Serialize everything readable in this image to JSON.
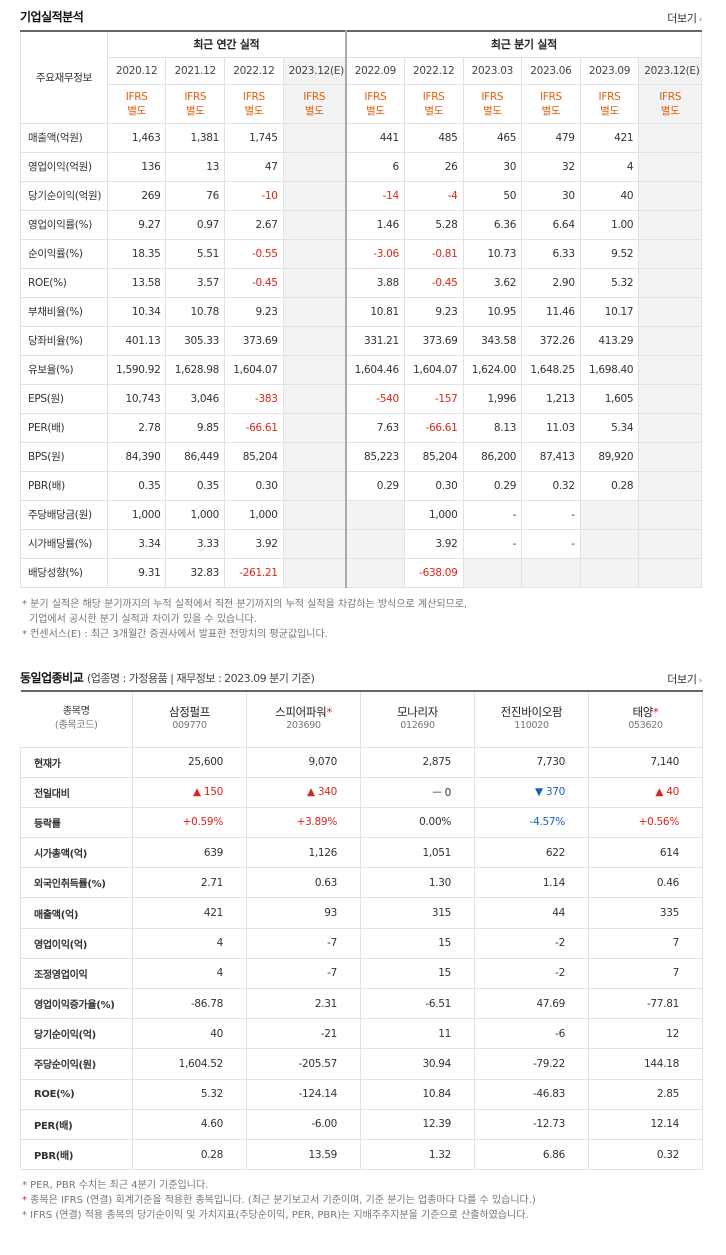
{
  "fin_section": {
    "title": "기업실적분석",
    "more": "더보기",
    "corner": "주요재무정보",
    "annual_header": "최근 연간 실적",
    "quarter_header": "최근 분기 실적",
    "annual_years": [
      "2020.12",
      "2021.12",
      "2022.12",
      "2023.12(E)"
    ],
    "quarter_years": [
      "2022.09",
      "2022.12",
      "2023.03",
      "2023.06",
      "2023.09",
      "2023.12(E)"
    ],
    "ifrs_label": "IFRS",
    "ifrs_sub": "별도",
    "rows": [
      {
        "label": "매출액(억원)",
        "annual": [
          "1,463",
          "1,381",
          "1,745",
          ""
        ],
        "quarter": [
          "441",
          "485",
          "465",
          "479",
          "421",
          ""
        ]
      },
      {
        "label": "영업이익(억원)",
        "annual": [
          "136",
          "13",
          "47",
          ""
        ],
        "quarter": [
          "6",
          "26",
          "30",
          "32",
          "4",
          ""
        ]
      },
      {
        "label": "당기순이익(억원)",
        "annual": [
          "269",
          "76",
          "-10",
          ""
        ],
        "quarter": [
          "-14",
          "-4",
          "50",
          "30",
          "40",
          ""
        ]
      },
      {
        "label": "영업이익률(%)",
        "annual": [
          "9.27",
          "0.97",
          "2.67",
          ""
        ],
        "quarter": [
          "1.46",
          "5.28",
          "6.36",
          "6.64",
          "1.00",
          ""
        ]
      },
      {
        "label": "순이익률(%)",
        "annual": [
          "18.35",
          "5.51",
          "-0.55",
          ""
        ],
        "quarter": [
          "-3.06",
          "-0.81",
          "10.73",
          "6.33",
          "9.52",
          ""
        ]
      },
      {
        "label": "ROE(%)",
        "annual": [
          "13.58",
          "3.57",
          "-0.45",
          ""
        ],
        "quarter": [
          "3.88",
          "-0.45",
          "3.62",
          "2.90",
          "5.32",
          ""
        ]
      },
      {
        "label": "부채비율(%)",
        "annual": [
          "10.34",
          "10.78",
          "9.23",
          ""
        ],
        "quarter": [
          "10.81",
          "9.23",
          "10.95",
          "11.46",
          "10.17",
          ""
        ]
      },
      {
        "label": "당좌비율(%)",
        "annual": [
          "401.13",
          "305.33",
          "373.69",
          ""
        ],
        "quarter": [
          "331.21",
          "373.69",
          "343.58",
          "372.26",
          "413.29",
          ""
        ]
      },
      {
        "label": "유보율(%)",
        "annual": [
          "1,590.92",
          "1,628.98",
          "1,604.07",
          ""
        ],
        "quarter": [
          "1,604.46",
          "1,604.07",
          "1,624.00",
          "1,648.25",
          "1,698.40",
          ""
        ]
      },
      {
        "label": "EPS(원)",
        "annual": [
          "10,743",
          "3,046",
          "-383",
          ""
        ],
        "quarter": [
          "-540",
          "-157",
          "1,996",
          "1,213",
          "1,605",
          ""
        ]
      },
      {
        "label": "PER(배)",
        "annual": [
          "2.78",
          "9.85",
          "-66.61",
          ""
        ],
        "quarter": [
          "7.63",
          "-66.61",
          "8.13",
          "11.03",
          "5.34",
          ""
        ]
      },
      {
        "label": "BPS(원)",
        "annual": [
          "84,390",
          "86,449",
          "85,204",
          ""
        ],
        "quarter": [
          "85,223",
          "85,204",
          "86,200",
          "87,413",
          "89,920",
          ""
        ]
      },
      {
        "label": "PBR(배)",
        "annual": [
          "0.35",
          "0.35",
          "0.30",
          ""
        ],
        "quarter": [
          "0.29",
          "0.30",
          "0.29",
          "0.32",
          "0.28",
          ""
        ]
      },
      {
        "label": "주당배당금(원)",
        "annual": [
          "1,000",
          "1,000",
          "1,000",
          ""
        ],
        "quarter": [
          "",
          "1,000",
          "-",
          "-",
          "",
          ""
        ]
      },
      {
        "label": "시가배당률(%)",
        "annual": [
          "3.34",
          "3.33",
          "3.92",
          ""
        ],
        "quarter": [
          "",
          "3.92",
          "-",
          "-",
          "",
          ""
        ]
      },
      {
        "label": "배당성향(%)",
        "annual": [
          "9.31",
          "32.83",
          "-261.21",
          ""
        ],
        "quarter": [
          "",
          "-638.09",
          "",
          "",
          "",
          ""
        ]
      }
    ]
  },
  "fin_notes": {
    "line1": "* 분기 실적은 해당 분기까지의 누적 실적에서 직전 분기까지의 누적 실적을 차감하는 방식으로 계산되므로,",
    "line2": "기업에서 공시한 분기 실적과 차이가 있을 수 있습니다.",
    "line3": "* 컨센서스(E) : 최근 3개월간 증권사에서 발표한 전망치의 평균값입니다."
  },
  "peer_section": {
    "title": "동일업종비교",
    "subtitle": "(업종명 : 가정용품 | 재무정보 : 2023.09 분기 기준)",
    "more": "더보기",
    "corner_line1": "종목명",
    "corner_line2": "(종목코드)",
    "companies": [
      {
        "name": "삼정펄프",
        "code": "009770",
        "star": ""
      },
      {
        "name": "스피어파워",
        "code": "203690",
        "star": "*"
      },
      {
        "name": "모나리자",
        "code": "012690",
        "star": ""
      },
      {
        "name": "전진바이오팜",
        "code": "110020",
        "star": ""
      },
      {
        "name": "태양",
        "code": "053620",
        "star": "*"
      }
    ],
    "rows": [
      {
        "label": "현재가",
        "values": [
          "25,600",
          "9,070",
          "2,875",
          "7,730",
          "7,140"
        ]
      },
      {
        "label": "전일대비",
        "values": [
          "▲ 150",
          "▲ 340",
          "ㅡ 0",
          "▼ 370",
          "▲ 40"
        ]
      },
      {
        "label": "등락률",
        "values": [
          "+0.59%",
          "+3.89%",
          "0.00%",
          "-4.57%",
          "+0.56%"
        ]
      },
      {
        "label": "시가총액(억)",
        "values": [
          "639",
          "1,126",
          "1,051",
          "622",
          "614"
        ]
      },
      {
        "label": "외국인취득률(%)",
        "values": [
          "2.71",
          "0.63",
          "1.30",
          "1.14",
          "0.46"
        ]
      },
      {
        "label": "매출액(억)",
        "values": [
          "421",
          "93",
          "315",
          "44",
          "335"
        ]
      },
      {
        "label": "영업이익(억)",
        "values": [
          "4",
          "-7",
          "15",
          "-2",
          "7"
        ]
      },
      {
        "label": "조정영업이익",
        "values": [
          "4",
          "-7",
          "15",
          "-2",
          "7"
        ]
      },
      {
        "label": "영업이익증가율(%)",
        "values": [
          "-86.78",
          "2.31",
          "-6.51",
          "47.69",
          "-77.81"
        ]
      },
      {
        "label": "당기순이익(억)",
        "values": [
          "40",
          "-21",
          "11",
          "-6",
          "12"
        ]
      },
      {
        "label": "주당순이익(원)",
        "values": [
          "1,604.52",
          "-205.57",
          "30.94",
          "-79.22",
          "144.18"
        ]
      },
      {
        "label": "ROE(%)",
        "values": [
          "5.32",
          "-124.14",
          "10.84",
          "-46.83",
          "2.85"
        ]
      },
      {
        "label": "PER(배)",
        "values": [
          "4.60",
          "-6.00",
          "12.39",
          "-12.73",
          "12.14"
        ]
      },
      {
        "label": "PBR(배)",
        "values": [
          "0.28",
          "13.59",
          "1.32",
          "6.86",
          "0.32"
        ]
      }
    ]
  },
  "peer_notes": {
    "line1": "* PER, PBR 수치는 최근 4분기 기준입니다.",
    "line2_star": "*",
    "line2": " 종목은 IFRS (연결) 회계기준을 적용한 종목입니다. (최근 분기보고서 기준이며, 기준 분기는 업종마다 다를 수 있습니다.)",
    "line3": "* IFRS (연결) 적용 종목의 당기순이익 및 가치지표(주당순이익, PER, PBR)는 지배주주지분을 기준으로 산출하였습니다."
  },
  "colors": {
    "negative": "#d9261c",
    "ifrs": "#e2600f",
    "down": "#1a5fbf",
    "border": "#e2e2e2"
  }
}
